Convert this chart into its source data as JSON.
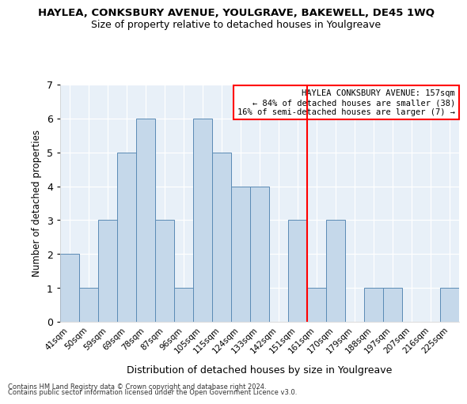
{
  "title": "HAYLEA, CONKSBURY AVENUE, YOULGRAVE, BAKEWELL, DE45 1WQ",
  "subtitle": "Size of property relative to detached houses in Youlgreave",
  "xlabel": "Distribution of detached houses by size in Youlgreave",
  "ylabel": "Number of detached properties",
  "categories": [
    "41sqm",
    "50sqm",
    "59sqm",
    "69sqm",
    "78sqm",
    "87sqm",
    "96sqm",
    "105sqm",
    "115sqm",
    "124sqm",
    "133sqm",
    "142sqm",
    "151sqm",
    "161sqm",
    "170sqm",
    "179sqm",
    "188sqm",
    "197sqm",
    "207sqm",
    "216sqm",
    "225sqm"
  ],
  "values": [
    2,
    1,
    3,
    5,
    6,
    3,
    1,
    6,
    5,
    4,
    4,
    0,
    3,
    1,
    3,
    0,
    1,
    1,
    0,
    0,
    1
  ],
  "bar_color": "#c5d8ea",
  "bar_edge_color": "#5a8ab5",
  "highlight_line_idx": 12,
  "annotation_title": "HAYLEA CONKSBURY AVENUE: 157sqm",
  "annotation_line1": "← 84% of detached houses are smaller (38)",
  "annotation_line2": "16% of semi-detached houses are larger (7) →",
  "ylim": [
    0,
    7
  ],
  "yticks": [
    0,
    1,
    2,
    3,
    4,
    5,
    6,
    7
  ],
  "footer1": "Contains HM Land Registry data © Crown copyright and database right 2024.",
  "footer2": "Contains public sector information licensed under the Open Government Licence v3.0.",
  "background_color": "#e8f0f8"
}
